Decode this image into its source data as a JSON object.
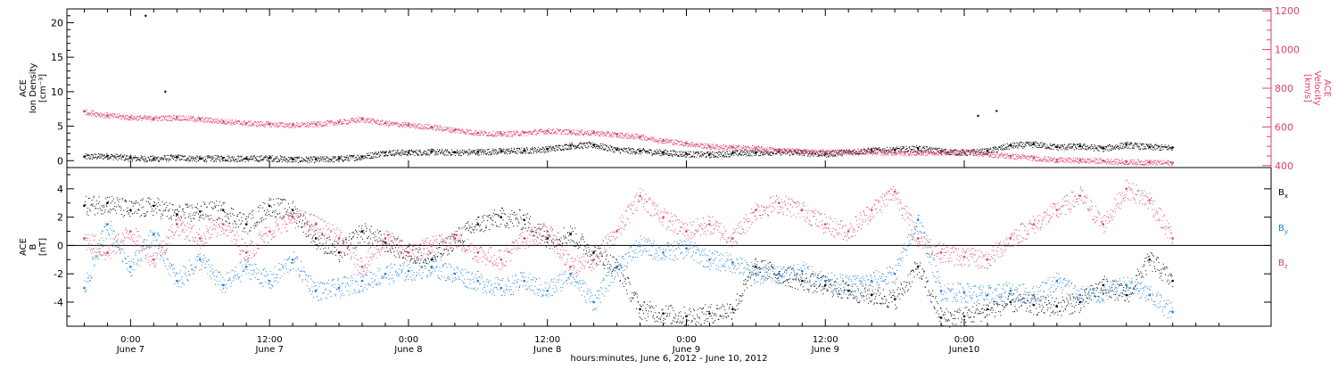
{
  "chart_data": [
    {
      "type": "scatter",
      "panel": "top",
      "ylabel_left": [
        "ACE",
        "Ion Density",
        "[cm⁻³]"
      ],
      "ylabel_right": [
        "ACE",
        "Velocity",
        "[km/s]"
      ],
      "ylim_left": [
        -1,
        22
      ],
      "ylim_right": [
        390,
        1210
      ],
      "yticks_left": [
        0,
        5,
        10,
        15,
        20
      ],
      "yticks_right": [
        400,
        600,
        800,
        1000,
        1200
      ],
      "grid": false,
      "colors": {
        "density": "#000000",
        "velocity": "#e0406a"
      },
      "series": [
        {
          "name": "Ion Density",
          "axis": "left",
          "color": "#000000",
          "x": [
            -4,
            -2,
            0,
            2,
            4,
            6,
            8,
            10,
            12,
            14,
            16,
            18,
            20,
            22,
            24,
            26,
            28,
            30,
            32,
            34,
            36,
            38,
            40,
            42,
            44,
            46,
            48,
            50,
            52,
            54,
            56,
            58,
            60,
            62,
            64,
            66,
            68,
            70,
            72,
            74,
            76,
            78,
            80,
            82,
            84,
            86,
            88,
            90
          ],
          "y": [
            0.6,
            0.7,
            0.4,
            0.3,
            0.5,
            0.3,
            0.4,
            0.3,
            0.4,
            0.2,
            0.2,
            0.3,
            0.6,
            1.2,
            1.2,
            1.3,
            1.2,
            1.3,
            1.4,
            1.5,
            1.7,
            2.2,
            2.3,
            1.6,
            1.4,
            1.2,
            1.0,
            0.9,
            1.1,
            1.2,
            1.3,
            1.2,
            1.0,
            1.3,
            1.5,
            1.6,
            1.8,
            1.4,
            1.2,
            1.4,
            2.2,
            2.4,
            2.0,
            2.1,
            1.8,
            2.3,
            2.0,
            1.9
          ]
        },
        {
          "name": "Velocity",
          "axis": "right",
          "color": "#e0406a",
          "x": [
            -4,
            -2,
            0,
            2,
            4,
            6,
            8,
            10,
            12,
            14,
            16,
            18,
            20,
            22,
            24,
            26,
            28,
            30,
            32,
            34,
            36,
            38,
            40,
            42,
            44,
            46,
            48,
            50,
            52,
            54,
            56,
            58,
            60,
            62,
            64,
            66,
            68,
            70,
            72,
            74,
            76,
            78,
            80,
            82,
            84,
            86,
            88,
            90
          ],
          "y": [
            680,
            660,
            650,
            645,
            650,
            640,
            630,
            620,
            615,
            610,
            615,
            625,
            640,
            620,
            610,
            600,
            585,
            570,
            565,
            570,
            580,
            575,
            570,
            560,
            550,
            530,
            515,
            500,
            495,
            490,
            480,
            475,
            470,
            472,
            470,
            468,
            465,
            470,
            472,
            460,
            450,
            440,
            430,
            428,
            425,
            420,
            418,
            415
          ]
        }
      ],
      "annotations": [
        {
          "x": 1.3,
          "y": 21,
          "axis": "left",
          "note": "outlier point"
        },
        {
          "x": 3,
          "y": 10,
          "axis": "left",
          "note": "outlier point"
        },
        {
          "x": 73.2,
          "y": 6.5,
          "axis": "left",
          "note": "outlier point"
        },
        {
          "x": 74.8,
          "y": 7.2,
          "axis": "left",
          "note": "outlier point"
        }
      ]
    },
    {
      "type": "scatter",
      "panel": "bottom",
      "ylabel_left": [
        "ACE",
        "B",
        "[nT]"
      ],
      "ylim": [
        -5.7,
        5.5
      ],
      "yticks": [
        -4,
        -2,
        0,
        2,
        4
      ],
      "zero_line": true,
      "grid": false,
      "legend": "right",
      "colors": {
        "bx": "#000000",
        "by": "#1a7fe0",
        "bz": "#e0406a"
      },
      "series": [
        {
          "name": "Bx",
          "label": "B",
          "sub": "x",
          "color": "#000000",
          "x": [
            -4,
            -2,
            0,
            2,
            4,
            6,
            8,
            10,
            12,
            14,
            16,
            18,
            20,
            22,
            24,
            26,
            28,
            30,
            32,
            34,
            36,
            38,
            40,
            42,
            44,
            46,
            48,
            50,
            52,
            54,
            56,
            58,
            60,
            62,
            64,
            66,
            68,
            70,
            72,
            74,
            76,
            78,
            80,
            82,
            84,
            86,
            88,
            90
          ],
          "y": [
            2.8,
            3.0,
            2.5,
            2.8,
            2.2,
            2.4,
            2.5,
            1.5,
            2.8,
            2.5,
            0.5,
            -0.5,
            1.0,
            0.2,
            -0.5,
            -1.0,
            0.5,
            1.5,
            2.0,
            1.8,
            0.5,
            0.8,
            -0.5,
            -1.5,
            -4.5,
            -4.8,
            -5.0,
            -4.8,
            -4.5,
            -1.5,
            -2.0,
            -2.5,
            -2.8,
            -3.2,
            -3.5,
            -3.8,
            -1.5,
            -5.1,
            -5.0,
            -4.5,
            -4.0,
            -4.2,
            -4.3,
            -4.0,
            -2.8,
            -3.5,
            -1.0,
            -2.5
          ]
        },
        {
          "name": "By",
          "label": "B",
          "sub": "y",
          "color": "#1a7fe0",
          "x": [
            -4,
            -2,
            0,
            2,
            4,
            6,
            8,
            10,
            12,
            14,
            16,
            18,
            20,
            22,
            24,
            26,
            28,
            30,
            32,
            34,
            36,
            38,
            40,
            42,
            44,
            46,
            48,
            50,
            52,
            54,
            56,
            58,
            60,
            62,
            64,
            66,
            68,
            70,
            72,
            74,
            76,
            78,
            80,
            82,
            84,
            86,
            88,
            90
          ],
          "y": [
            -3.0,
            1.5,
            -1.5,
            0.8,
            -2.5,
            -1.0,
            -2.8,
            -1.5,
            -2.5,
            -1.0,
            -3.2,
            -3.0,
            -2.5,
            -2.0,
            -1.8,
            -1.5,
            -2.0,
            -2.5,
            -3.0,
            -2.5,
            -3.2,
            -2.0,
            -4.0,
            -1.5,
            0.0,
            -0.5,
            -0.2,
            -1.0,
            -1.2,
            -2.0,
            -2.0,
            -1.8,
            -2.5,
            -2.8,
            -2.5,
            -2.0,
            1.8,
            -3.2,
            -3.3,
            -3.5,
            -3.2,
            -3.5,
            -2.5,
            -3.5,
            -3.4,
            -2.8,
            -3.5,
            -4.7
          ]
        },
        {
          "name": "Bz",
          "label": "B",
          "sub": "z",
          "color": "#e0406a",
          "x": [
            -4,
            -2,
            0,
            2,
            4,
            6,
            8,
            10,
            12,
            14,
            16,
            18,
            20,
            22,
            24,
            26,
            28,
            30,
            32,
            34,
            36,
            38,
            40,
            42,
            44,
            46,
            48,
            50,
            52,
            54,
            56,
            58,
            60,
            62,
            64,
            66,
            68,
            70,
            72,
            74,
            76,
            78,
            80,
            82,
            84,
            86,
            88,
            90
          ],
          "y": [
            0.5,
            -0.5,
            1.0,
            -1.0,
            1.5,
            0.5,
            1.5,
            -0.5,
            1.0,
            2.0,
            1.5,
            0.5,
            -1.5,
            0.5,
            -0.5,
            0.0,
            0.5,
            -0.5,
            -1.0,
            0.5,
            1.0,
            -1.5,
            -1.0,
            1.0,
            3.5,
            2.0,
            1.0,
            1.5,
            0.5,
            2.5,
            3.0,
            2.5,
            1.5,
            1.0,
            2.5,
            3.8,
            0.5,
            -0.5,
            -0.8,
            -1.0,
            0.5,
            1.5,
            2.5,
            3.5,
            1.5,
            4.0,
            3.2,
            0.5
          ]
        }
      ]
    }
  ],
  "x_axis": {
    "range": [
      -5.5,
      98.5
    ],
    "ticks": [
      {
        "x": 0,
        "time": "0:00",
        "day": "June 7"
      },
      {
        "x": 12,
        "time": "12:00",
        "day": "June 7"
      },
      {
        "x": 24,
        "time": "0:00",
        "day": "June 8"
      },
      {
        "x": 36,
        "time": "12:00",
        "day": "June 8"
      },
      {
        "x": 48,
        "time": "0:00",
        "day": "June 9"
      },
      {
        "x": 60,
        "time": "12:00",
        "day": "June 9"
      },
      {
        "x": 72,
        "time": "0:00",
        "day": "June10"
      }
    ],
    "label": "hours:minutes, June  6, 2012 - June 10, 2012"
  }
}
